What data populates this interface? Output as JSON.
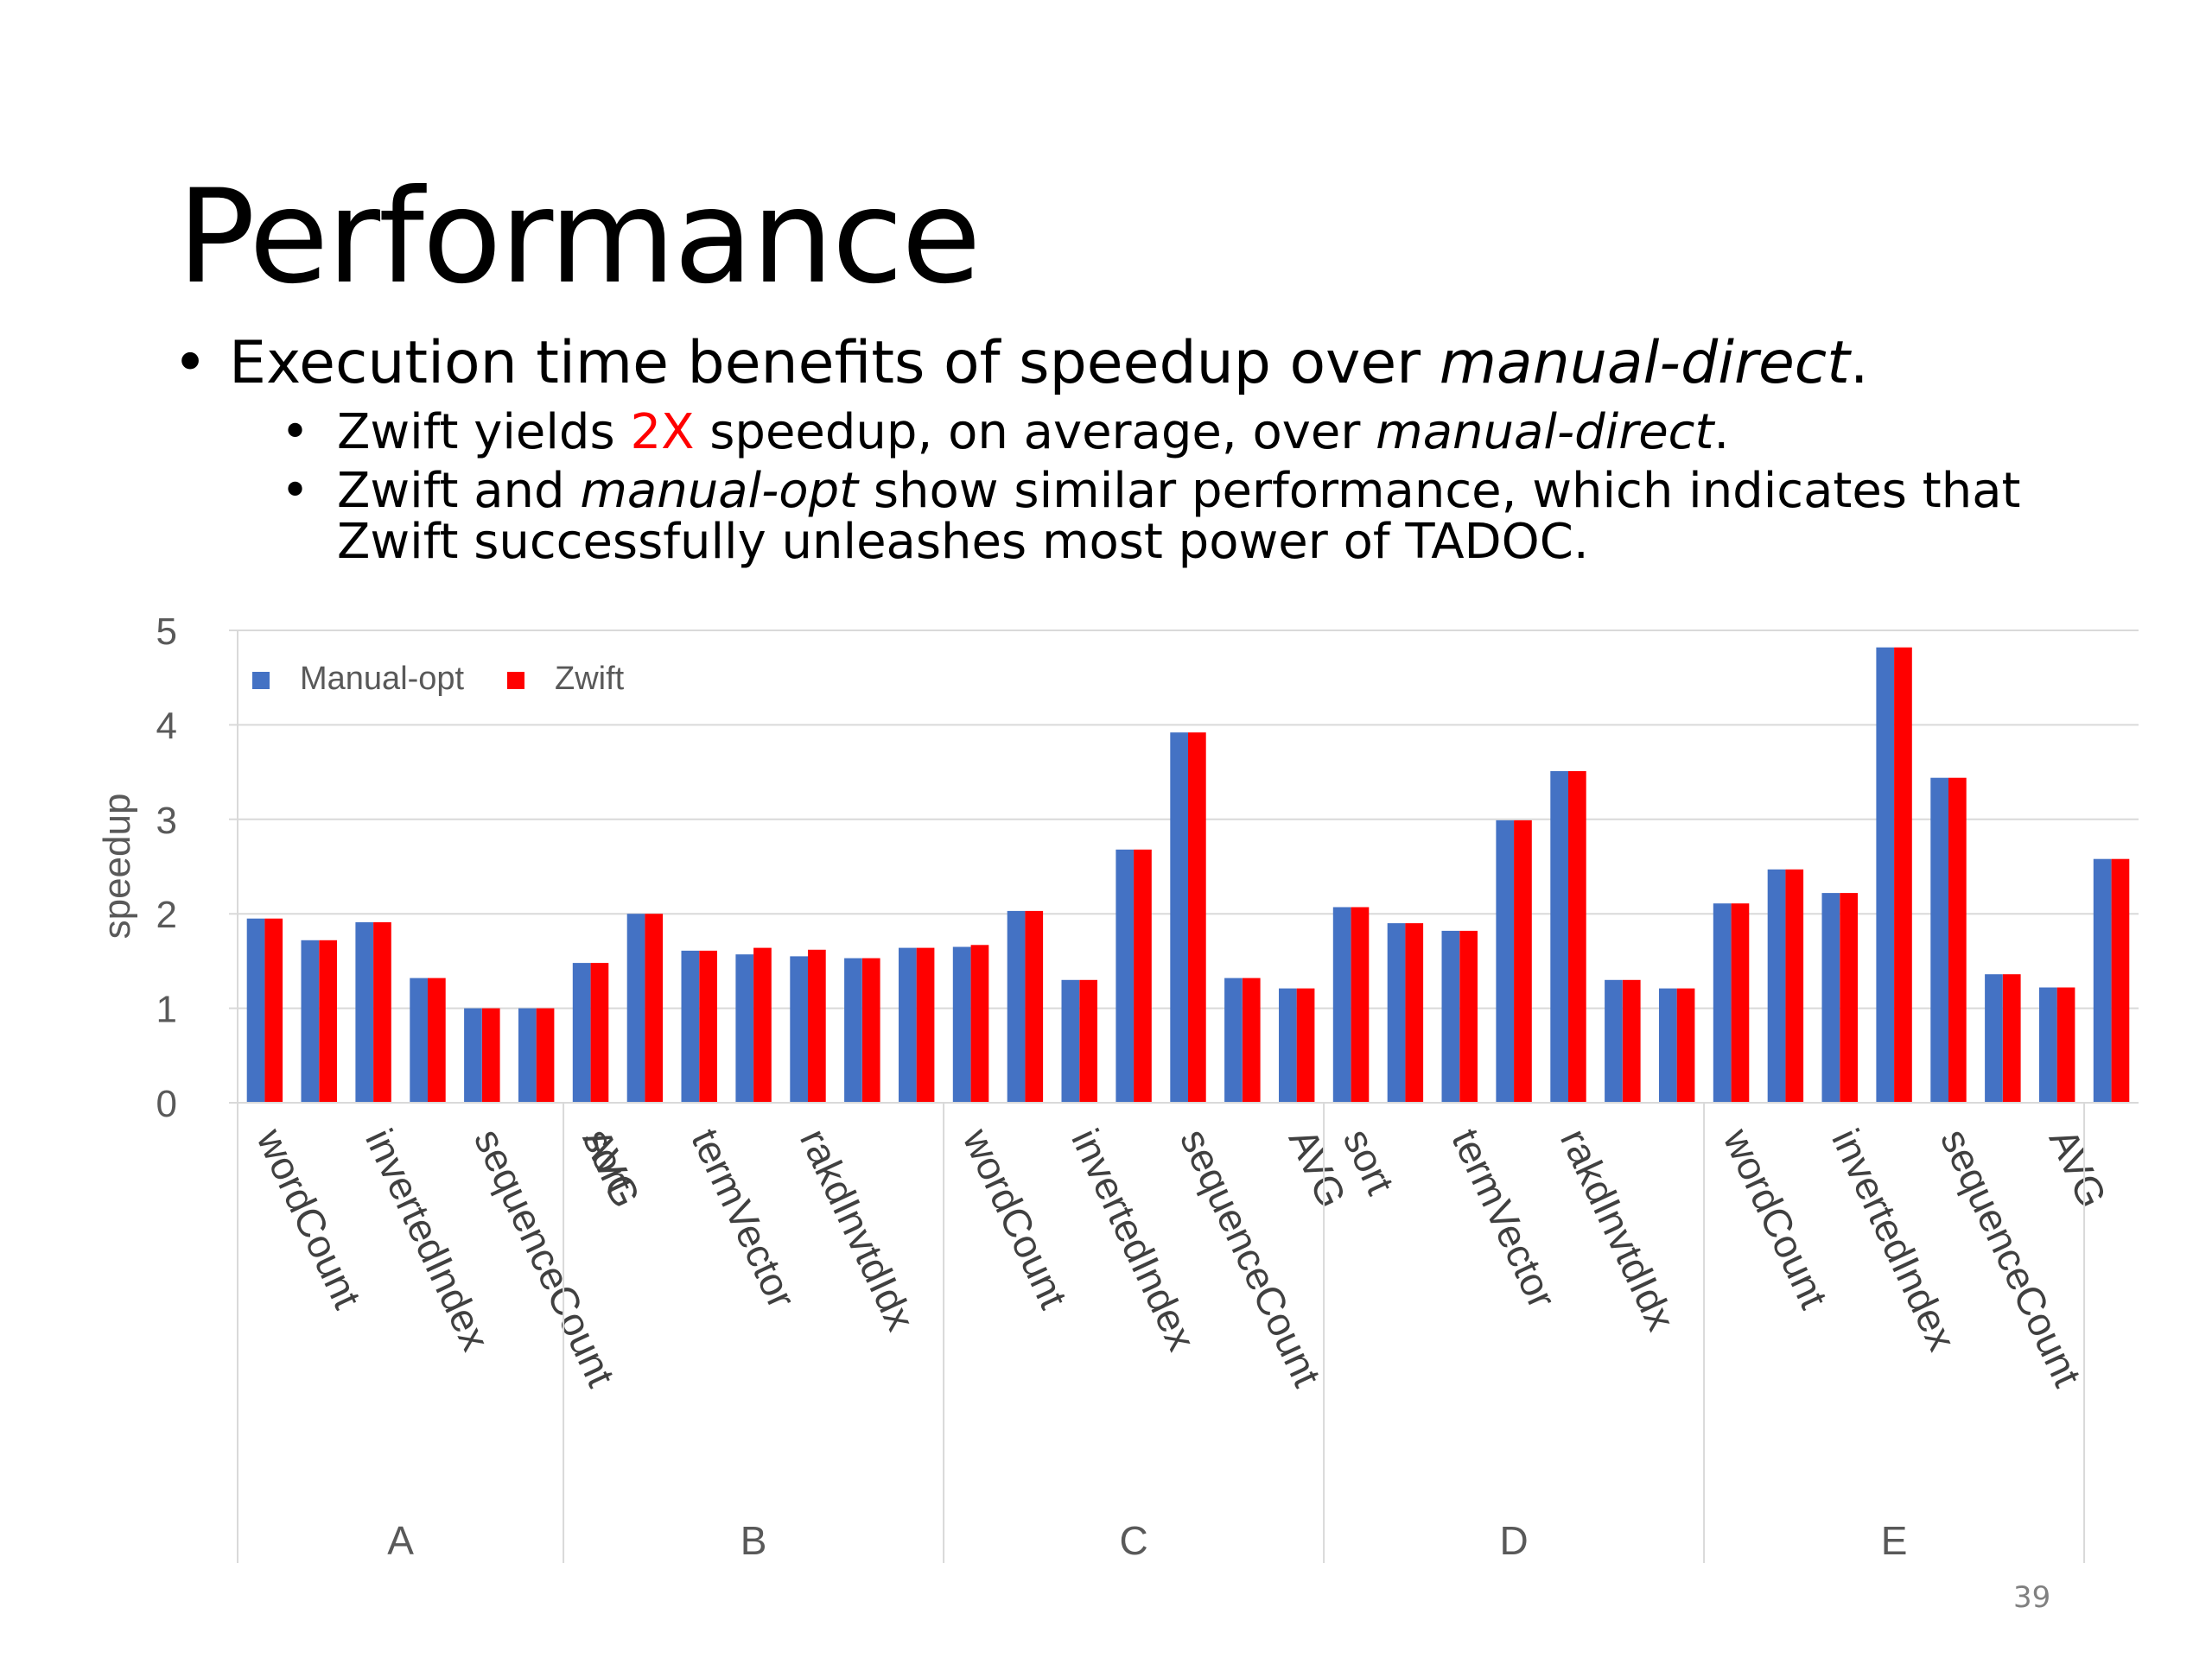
{
  "slide": {
    "title": "Performance",
    "bullet1": {
      "prefix": "Execution time benefits of speedup over ",
      "em": "manual-direct",
      "suffix": "."
    },
    "bullet2": {
      "text1": "Zwift yields ",
      "highlight": "2X",
      "text2": " speedup, on average, over ",
      "em": "manual-direct",
      "suffix": "."
    },
    "bullet3": {
      "text1": "Zwift and ",
      "em": "manual-opt",
      "text2": " show similar performance, which indicates that Zwift successfully unleashes most power of TADOC."
    },
    "page_number": "39",
    "highlight_color": "#ff0000"
  },
  "chart_data": {
    "type": "bar",
    "ylabel": "speedup",
    "ylim": [
      0,
      5
    ],
    "yticks": [
      0,
      1,
      2,
      3,
      4,
      5
    ],
    "grid": true,
    "legend_position": "top-left",
    "groups": [
      {
        "name": "A",
        "categories": [
          "wordCount",
          "invertedIndex",
          "sequenceCount",
          "AVG"
        ],
        "bars": 6
      },
      {
        "name": "B",
        "categories": [
          "sort",
          "termVector",
          "rakdInvtdIdx"
        ],
        "bars": 7
      },
      {
        "name": "C",
        "categories": [
          "wordCount",
          "invertedIndex",
          "sequenceCount",
          "AVG"
        ],
        "bars": 7
      },
      {
        "name": "D",
        "categories": [
          "sort",
          "termVector",
          "rakdInvtdIdx"
        ],
        "bars": 7
      },
      {
        "name": "E",
        "categories": [
          "wordCount",
          "invertedIndex",
          "sequenceCount",
          "AVG"
        ],
        "bars": 7
      }
    ],
    "series": [
      {
        "name": "Manual-opt",
        "color": "#4472c4",
        "values": [
          1.95,
          1.72,
          1.91,
          1.32,
          1.0,
          1.0,
          1.48,
          2.0,
          1.61,
          1.57,
          1.55,
          1.53,
          1.64,
          1.65,
          2.03,
          1.3,
          2.68,
          3.92,
          1.32,
          1.21,
          2.07,
          1.9,
          1.82,
          2.99,
          3.51,
          1.3,
          1.21,
          2.11,
          2.47,
          2.22,
          4.82,
          3.44,
          1.36,
          1.22,
          2.58
        ]
      },
      {
        "name": "Zwift",
        "color": "#ff0000",
        "values": [
          1.95,
          1.72,
          1.91,
          1.32,
          1.0,
          1.0,
          1.48,
          2.0,
          1.61,
          1.64,
          1.62,
          1.53,
          1.64,
          1.67,
          2.03,
          1.3,
          2.68,
          3.92,
          1.32,
          1.21,
          2.07,
          1.9,
          1.82,
          2.99,
          3.51,
          1.3,
          1.21,
          2.11,
          2.47,
          2.22,
          4.82,
          3.44,
          1.36,
          1.22,
          2.58
        ]
      }
    ]
  }
}
